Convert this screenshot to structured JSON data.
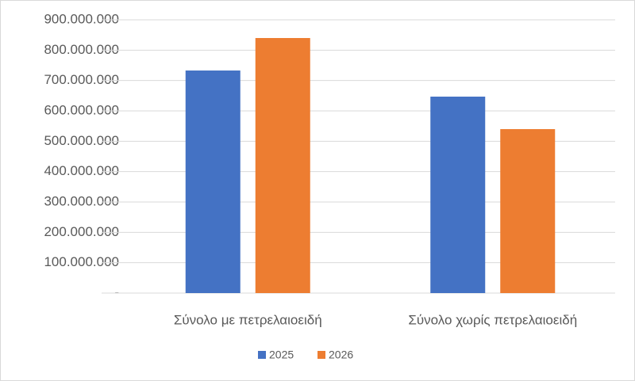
{
  "chart_data": {
    "type": "bar",
    "categories": [
      "Σύνολο με πετρελαιοειδή",
      "Σύνολο χωρίς πετρελαιοειδή"
    ],
    "series": [
      {
        "name": "2025",
        "color": "#4472c4",
        "values": [
          733000000,
          647000000
        ]
      },
      {
        "name": "2026",
        "color": "#ed7d31",
        "values": [
          840000000,
          540000000
        ]
      }
    ],
    "ylim": [
      0,
      900000000
    ],
    "yticks": [
      {
        "value": 0,
        "label": "-"
      },
      {
        "value": 100000000,
        "label": "100.000.000"
      },
      {
        "value": 200000000,
        "label": "200.000.000"
      },
      {
        "value": 300000000,
        "label": "300.000.000"
      },
      {
        "value": 400000000,
        "label": "400.000.000"
      },
      {
        "value": 500000000,
        "label": "500.000.000"
      },
      {
        "value": 600000000,
        "label": "600.000.000"
      },
      {
        "value": 700000000,
        "label": "700.000.000"
      },
      {
        "value": 800000000,
        "label": "800.000.000"
      },
      {
        "value": 900000000,
        "label": "900.000.000"
      }
    ],
    "grid": true,
    "legend": "bottom"
  }
}
